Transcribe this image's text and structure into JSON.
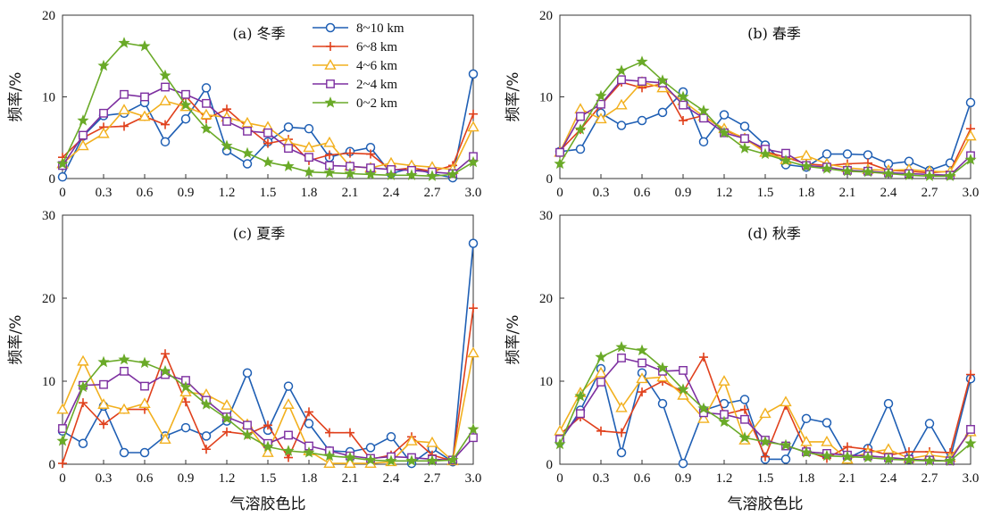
{
  "colors": {
    "8~10 km": "#1f5fb4",
    "6~8 km": "#e0401c",
    "4~6 km": "#f2b01e",
    "2~4 km": "#7d2fa0",
    "0~2 km": "#6aaa28"
  },
  "legend": [
    "8~10 km",
    "6~8 km",
    "4~6 km",
    "2~4 km",
    "0~2 km"
  ],
  "chart_data": [
    {
      "type": "line",
      "title": "(a) 冬季",
      "xlabel": "",
      "ylabel": "频率/%",
      "ylim": [
        0,
        20
      ],
      "yticks": [
        "0",
        "10",
        "20"
      ],
      "xticks": [
        "0",
        "0.3",
        "0.6",
        "0.9",
        "1.2",
        "1.5",
        "1.8",
        "2.1",
        "2.4",
        "2.7",
        "3.0"
      ],
      "x": [
        0,
        0.15,
        0.3,
        0.45,
        0.6,
        0.75,
        0.9,
        1.05,
        1.2,
        1.35,
        1.5,
        1.65,
        1.8,
        1.95,
        2.1,
        2.25,
        2.4,
        2.55,
        2.7,
        2.85,
        3.0
      ],
      "series": [
        {
          "name": "8~10 km",
          "values": [
            0.2,
            5.2,
            7.7,
            8.0,
            9.3,
            4.5,
            7.3,
            11.1,
            3.4,
            1.8,
            4.5,
            6.3,
            6.1,
            2.6,
            3.3,
            3.8,
            0.6,
            1.3,
            0.6,
            0.1,
            12.8
          ]
        },
        {
          "name": "6~8 km",
          "values": [
            2.6,
            5.0,
            6.3,
            6.4,
            7.6,
            6.6,
            10.1,
            7.3,
            8.5,
            6.3,
            4.3,
            4.8,
            2.2,
            2.9,
            3.1,
            3.0,
            1.0,
            1.3,
            0.9,
            1.6,
            7.9
          ]
        },
        {
          "name": "4~6 km",
          "values": [
            1.8,
            4.0,
            5.5,
            8.4,
            7.6,
            9.5,
            8.8,
            7.8,
            7.5,
            6.8,
            6.3,
            4.4,
            3.8,
            4.4,
            1.5,
            1.3,
            1.9,
            1.6,
            1.4,
            1.1,
            6.3
          ]
        },
        {
          "name": "2~4 km",
          "values": [
            1.6,
            5.3,
            8.0,
            10.3,
            10.0,
            11.2,
            10.3,
            9.2,
            7.0,
            5.8,
            5.6,
            3.7,
            2.6,
            1.6,
            1.5,
            1.3,
            1.1,
            1.0,
            0.8,
            0.6,
            2.7
          ]
        },
        {
          "name": "0~2 km",
          "values": [
            1.8,
            7.1,
            13.8,
            16.6,
            16.2,
            12.6,
            9.0,
            6.1,
            4.0,
            3.1,
            2.0,
            1.5,
            0.8,
            0.7,
            0.6,
            0.5,
            0.4,
            0.4,
            0.3,
            0.5,
            2.0
          ]
        }
      ]
    },
    {
      "type": "line",
      "title": "(b) 春季",
      "xlabel": "",
      "ylabel": "频率/%",
      "ylim": [
        0,
        20
      ],
      "yticks": [
        "0",
        "10",
        "20"
      ],
      "xticks": [
        "0",
        "0.3",
        "0.6",
        "0.9",
        "1.2",
        "1.5",
        "1.8",
        "2.1",
        "2.4",
        "2.7",
        "3.0"
      ],
      "x": [
        0,
        0.15,
        0.3,
        0.45,
        0.6,
        0.75,
        0.9,
        1.05,
        1.2,
        1.35,
        1.5,
        1.65,
        1.8,
        1.95,
        2.1,
        2.25,
        2.4,
        2.55,
        2.7,
        2.85,
        3.0
      ],
      "series": [
        {
          "name": "8~10 km",
          "values": [
            3.3,
            3.6,
            8.0,
            6.5,
            7.1,
            8.1,
            10.6,
            4.5,
            7.8,
            6.4,
            4.1,
            1.7,
            1.4,
            3.0,
            3.0,
            2.9,
            1.8,
            2.1,
            1.0,
            1.9,
            9.3
          ]
        },
        {
          "name": "6~8 km",
          "values": [
            3.4,
            6.0,
            9.0,
            11.8,
            11.1,
            11.6,
            7.1,
            7.7,
            5.9,
            5.0,
            3.3,
            2.6,
            1.8,
            1.6,
            1.8,
            1.9,
            1.0,
            0.9,
            0.7,
            0.9,
            6.1
          ]
        },
        {
          "name": "4~6 km",
          "values": [
            3.2,
            8.5,
            7.3,
            9.0,
            11.8,
            11.1,
            9.5,
            7.6,
            6.1,
            4.9,
            3.2,
            2.3,
            2.8,
            1.8,
            1.3,
            1.1,
            1.0,
            1.1,
            0.9,
            0.8,
            5.2
          ]
        },
        {
          "name": "2~4 km",
          "values": [
            3.2,
            7.6,
            9.1,
            12.1,
            11.9,
            11.7,
            9.0,
            7.4,
            5.6,
            4.9,
            3.6,
            3.1,
            1.6,
            1.4,
            1.0,
            0.9,
            0.7,
            0.6,
            0.5,
            0.4,
            2.8
          ]
        },
        {
          "name": "0~2 km",
          "values": [
            1.8,
            6.0,
            10.1,
            13.2,
            14.3,
            12.0,
            10.0,
            8.3,
            5.6,
            3.7,
            3.0,
            2.2,
            1.5,
            1.2,
            0.9,
            0.8,
            0.6,
            0.4,
            0.3,
            0.3,
            2.3
          ]
        }
      ]
    },
    {
      "type": "line",
      "title": "(c) 夏季",
      "xlabel": "气溶胶色比",
      "ylabel": "频率/%",
      "ylim": [
        0,
        30
      ],
      "yticks": [
        "0",
        "10",
        "20",
        "30"
      ],
      "xticks": [
        "0",
        "0.3",
        "0.6",
        "0.9",
        "1.2",
        "1.5",
        "1.8",
        "2.1",
        "2.4",
        "2.7",
        "3.0"
      ],
      "x": [
        0,
        0.15,
        0.3,
        0.45,
        0.6,
        0.75,
        0.9,
        1.05,
        1.2,
        1.35,
        1.5,
        1.65,
        1.8,
        1.95,
        2.1,
        2.25,
        2.4,
        2.55,
        2.7,
        2.85,
        3.0
      ],
      "series": [
        {
          "name": "8~10 km",
          "values": [
            4.0,
            2.5,
            7.0,
            1.4,
            1.4,
            3.4,
            4.4,
            3.4,
            5.2,
            11.0,
            4.1,
            9.4,
            4.9,
            1.6,
            1.5,
            2.0,
            3.3,
            0.1,
            1.9,
            0.3,
            26.6
          ]
        },
        {
          "name": "6~8 km",
          "values": [
            0.1,
            7.4,
            4.8,
            6.6,
            6.6,
            13.3,
            7.5,
            1.8,
            3.9,
            3.6,
            4.7,
            0.8,
            6.3,
            3.8,
            3.8,
            0.6,
            1.1,
            3.3,
            1.1,
            0.4,
            18.8
          ]
        },
        {
          "name": "4~6 km",
          "values": [
            6.6,
            12.4,
            7.2,
            6.6,
            7.3,
            3.0,
            8.7,
            8.4,
            7.1,
            4.8,
            1.4,
            7.2,
            1.6,
            0.1,
            0.1,
            0.1,
            0.3,
            2.8,
            2.6,
            0.4,
            13.4
          ]
        },
        {
          "name": "2~4 km",
          "values": [
            4.3,
            9.5,
            9.6,
            11.2,
            9.4,
            10.8,
            10.1,
            7.7,
            5.7,
            4.7,
            2.5,
            3.5,
            2.2,
            1.6,
            1.0,
            0.7,
            0.9,
            0.8,
            0.6,
            0.5,
            3.2
          ]
        },
        {
          "name": "0~2 km",
          "values": [
            2.8,
            9.3,
            12.3,
            12.6,
            12.2,
            11.2,
            9.3,
            7.2,
            5.5,
            3.5,
            2.1,
            1.6,
            1.4,
            1.0,
            0.8,
            0.5,
            0.4,
            0.4,
            0.4,
            0.5,
            4.2
          ]
        }
      ]
    },
    {
      "type": "line",
      "title": "(d) 秋季",
      "xlabel": "气溶胶色比",
      "ylabel": "频率/%",
      "ylim": [
        0,
        30
      ],
      "yticks": [
        "0",
        "10",
        "20",
        "30"
      ],
      "xticks": [
        "0",
        "0.3",
        "0.6",
        "0.9",
        "1.2",
        "1.5",
        "1.8",
        "2.1",
        "2.4",
        "2.7",
        "3.0"
      ],
      "x": [
        0,
        0.15,
        0.3,
        0.45,
        0.6,
        0.75,
        0.9,
        1.05,
        1.2,
        1.35,
        1.5,
        1.65,
        1.8,
        1.95,
        2.1,
        2.25,
        2.4,
        2.55,
        2.7,
        2.85,
        3.0
      ],
      "series": [
        {
          "name": "8~10 km",
          "values": [
            2.7,
            6.5,
            11.5,
            1.4,
            11.0,
            7.3,
            0.1,
            6.5,
            7.3,
            7.8,
            0.6,
            0.6,
            5.5,
            5.0,
            0.7,
            1.9,
            7.3,
            0.6,
            4.9,
            0.6,
            10.3
          ]
        },
        {
          "name": "6~8 km",
          "values": [
            3.6,
            5.7,
            4.0,
            3.8,
            8.7,
            10.0,
            8.7,
            12.9,
            6.0,
            6.6,
            0.9,
            7.1,
            1.6,
            0.7,
            2.1,
            1.8,
            1.1,
            1.5,
            1.5,
            1.4,
            10.8
          ]
        },
        {
          "name": "4~6 km",
          "values": [
            4.0,
            8.6,
            11.0,
            6.8,
            10.3,
            10.5,
            8.3,
            5.5,
            10.0,
            2.9,
            6.1,
            7.5,
            2.7,
            2.7,
            0.6,
            1.4,
            1.8,
            0.7,
            1.1,
            0.8,
            3.9
          ]
        },
        {
          "name": "2~4 km",
          "values": [
            3.0,
            6.1,
            9.9,
            12.8,
            12.2,
            11.2,
            11.3,
            6.2,
            6.0,
            5.4,
            2.9,
            2.2,
            1.5,
            1.3,
            1.1,
            1.0,
            0.8,
            0.6,
            0.5,
            0.4,
            4.2
          ]
        },
        {
          "name": "0~2 km",
          "values": [
            2.4,
            8.2,
            12.9,
            14.1,
            13.7,
            11.6,
            9.0,
            6.7,
            5.1,
            3.2,
            2.7,
            2.3,
            1.4,
            1.0,
            0.9,
            0.8,
            0.6,
            0.5,
            0.4,
            0.4,
            2.5
          ]
        }
      ]
    }
  ]
}
